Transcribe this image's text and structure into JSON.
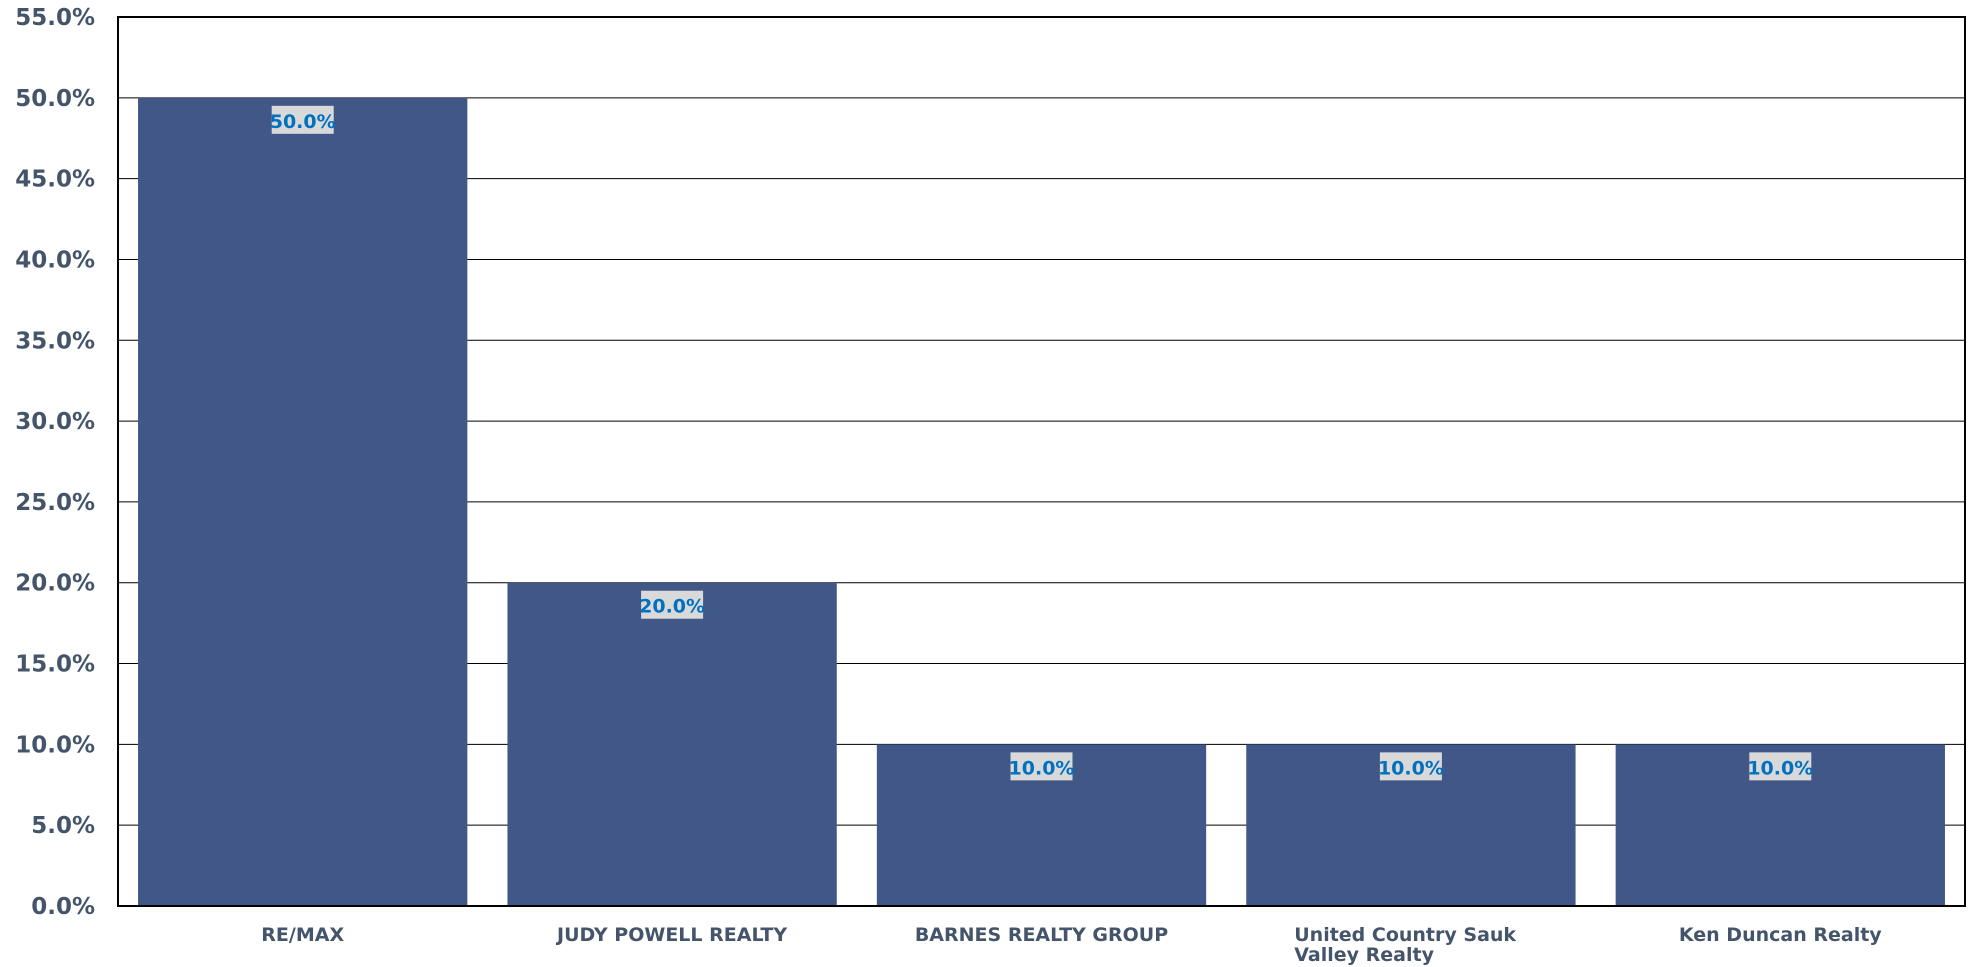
{
  "chart_data": {
    "type": "bar",
    "categories": [
      "RE/MAX",
      "JUDY POWELL REALTY",
      "BARNES REALTY GROUP",
      "United Country Sauk Valley Realty",
      "Ken Duncan Realty"
    ],
    "category_lines": [
      [
        "RE/MAX"
      ],
      [
        "JUDY POWELL REALTY"
      ],
      [
        "BARNES REALTY GROUP"
      ],
      [
        "United Country Sauk",
        "Valley Realty"
      ],
      [
        "Ken Duncan Realty"
      ]
    ],
    "values": [
      50.0,
      20.0,
      10.0,
      10.0,
      10.0
    ],
    "data_labels": [
      "50.0%",
      "20.0%",
      "10.0%",
      "10.0%",
      "10.0%"
    ],
    "ylim": [
      0,
      55
    ],
    "yticks": [
      0,
      5,
      10,
      15,
      20,
      25,
      30,
      35,
      40,
      45,
      50,
      55
    ],
    "ytick_labels": [
      "0.0%",
      "5.0%",
      "10.0%",
      "15.0%",
      "20.0%",
      "25.0%",
      "30.0%",
      "35.0%",
      "40.0%",
      "45.0%",
      "50.0%",
      "55.0%"
    ],
    "grid": true,
    "colors": {
      "bar": "#405787",
      "data_label": "#0070c0",
      "data_label_bg": "#d9d9d9",
      "tick_label": "#44546a"
    }
  }
}
